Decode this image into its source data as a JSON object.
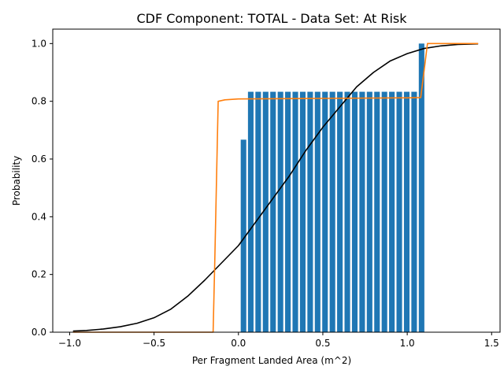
{
  "chart_data": {
    "type": "bar",
    "title": "CDF Component: TOTAL - Data Set: At Risk",
    "xlabel": "Per Fragment Landed Area (m^2)",
    "ylabel": "Probability",
    "xlim": [
      -1.1,
      1.55
    ],
    "ylim": [
      0,
      1.05
    ],
    "x_ticks": [
      -1.0,
      -0.5,
      0.0,
      0.5,
      1.0,
      1.5
    ],
    "x_tick_labels": [
      "−1.0",
      "−0.5",
      "0.0",
      "0.5",
      "1.0",
      "1.5"
    ],
    "y_ticks": [
      0.0,
      0.2,
      0.4,
      0.6,
      0.8,
      1.0
    ],
    "y_tick_labels": [
      "0.0",
      "0.2",
      "0.4",
      "0.6",
      "0.8",
      "1.0"
    ],
    "grid": false,
    "legend": "none",
    "bar_color": "#1f77b4",
    "bar_width": 0.033,
    "bars": {
      "x": [
        0.03,
        0.073,
        0.117,
        0.161,
        0.205,
        0.249,
        0.293,
        0.337,
        0.381,
        0.425,
        0.469,
        0.513,
        0.557,
        0.601,
        0.645,
        0.689,
        0.733,
        0.777,
        0.821,
        0.865,
        0.909,
        0.953,
        0.997,
        1.041,
        1.085
      ],
      "values": [
        0.667,
        0.833,
        0.833,
        0.833,
        0.833,
        0.833,
        0.833,
        0.833,
        0.833,
        0.833,
        0.833,
        0.833,
        0.833,
        0.833,
        0.833,
        0.833,
        0.833,
        0.833,
        0.833,
        0.833,
        0.833,
        0.833,
        0.833,
        0.833,
        1.0
      ]
    },
    "lines": [
      {
        "color": "#000000",
        "points": [
          [
            -0.98,
            0.004
          ],
          [
            -0.9,
            0.006
          ],
          [
            -0.8,
            0.011
          ],
          [
            -0.7,
            0.019
          ],
          [
            -0.6,
            0.031
          ],
          [
            -0.5,
            0.05
          ],
          [
            -0.4,
            0.08
          ],
          [
            -0.3,
            0.125
          ],
          [
            -0.2,
            0.18
          ],
          [
            -0.1,
            0.24
          ],
          [
            0.0,
            0.3
          ],
          [
            0.1,
            0.38
          ],
          [
            0.2,
            0.46
          ],
          [
            0.3,
            0.54
          ],
          [
            0.4,
            0.63
          ],
          [
            0.5,
            0.71
          ],
          [
            0.6,
            0.78
          ],
          [
            0.7,
            0.85
          ],
          [
            0.8,
            0.9
          ],
          [
            0.9,
            0.94
          ],
          [
            1.0,
            0.965
          ],
          [
            1.1,
            0.983
          ],
          [
            1.2,
            0.992
          ],
          [
            1.3,
            0.997
          ],
          [
            1.42,
            0.999
          ]
        ]
      },
      {
        "color": "#ff7f0e",
        "points": [
          [
            -0.98,
            0.0
          ],
          [
            -0.15,
            0.0
          ],
          [
            -0.14,
            0.25
          ],
          [
            -0.12,
            0.8
          ],
          [
            -0.08,
            0.805
          ],
          [
            0.0,
            0.808
          ],
          [
            0.5,
            0.81
          ],
          [
            1.0,
            0.812
          ],
          [
            1.08,
            0.813
          ],
          [
            1.12,
            1.0
          ],
          [
            1.42,
            1.0
          ]
        ]
      }
    ]
  }
}
